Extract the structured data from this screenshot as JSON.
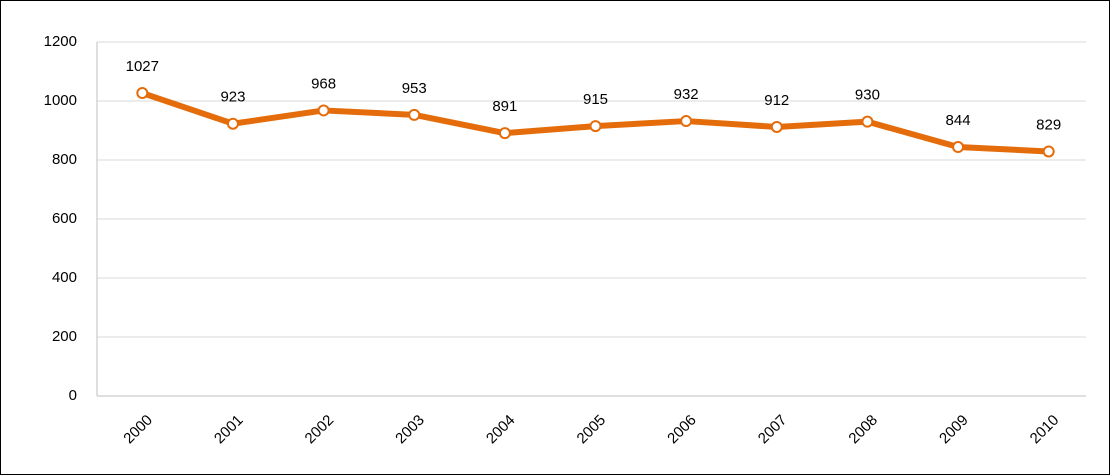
{
  "chart_data": {
    "type": "line",
    "categories": [
      "2000",
      "2001",
      "2002",
      "2003",
      "2004",
      "2005",
      "2006",
      "2007",
      "2008",
      "2009",
      "2010"
    ],
    "values": [
      1027,
      923,
      968,
      953,
      891,
      915,
      932,
      912,
      930,
      844,
      829
    ],
    "color": "#e46c0a",
    "ylim": [
      0,
      1200
    ],
    "yticks": [
      0,
      200,
      400,
      600,
      800,
      1000,
      1200
    ],
    "grid": true
  }
}
